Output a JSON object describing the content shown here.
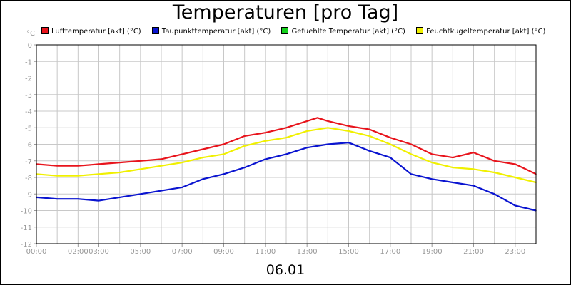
{
  "chart_data": {
    "type": "line",
    "title": "Temperaturen [pro Tag]",
    "unit": "°C",
    "xlabel": "06.01",
    "ylim": [
      -12,
      0
    ],
    "yticks": [
      0,
      -1,
      -2,
      -3,
      -4,
      -5,
      -6,
      -7,
      -8,
      -9,
      -10,
      -11,
      -12
    ],
    "x_range_hours": [
      0,
      24
    ],
    "xtick_labels": [
      {
        "hour": 0,
        "label": "00:00"
      },
      {
        "hour": 2,
        "label": "02:00"
      },
      {
        "hour": 3,
        "label": "03:00"
      },
      {
        "hour": 5,
        "label": "05:00"
      },
      {
        "hour": 7,
        "label": "07:00"
      },
      {
        "hour": 9,
        "label": "09:00"
      },
      {
        "hour": 11,
        "label": "11:00"
      },
      {
        "hour": 13,
        "label": "13:00"
      },
      {
        "hour": 15,
        "label": "15:00"
      },
      {
        "hour": 17,
        "label": "17:00"
      },
      {
        "hour": 19,
        "label": "19:00"
      },
      {
        "hour": 21,
        "label": "21:00"
      },
      {
        "hour": 23,
        "label": "23:00"
      }
    ],
    "grid": true,
    "legend_position": "top",
    "series": [
      {
        "name": "Lufttemperatur [akt] (°C)",
        "color": "#e8141c",
        "points": [
          [
            0,
            -7.2
          ],
          [
            1,
            -7.3
          ],
          [
            2,
            -7.3
          ],
          [
            3,
            -7.2
          ],
          [
            4,
            -7.1
          ],
          [
            5,
            -7.0
          ],
          [
            6,
            -6.9
          ],
          [
            7,
            -6.6
          ],
          [
            8,
            -6.3
          ],
          [
            9,
            -6.0
          ],
          [
            10,
            -5.5
          ],
          [
            11,
            -5.3
          ],
          [
            12,
            -5.0
          ],
          [
            13,
            -4.6
          ],
          [
            13.5,
            -4.4
          ],
          [
            14,
            -4.6
          ],
          [
            15,
            -4.9
          ],
          [
            16,
            -5.1
          ],
          [
            17,
            -5.6
          ],
          [
            18,
            -6.0
          ],
          [
            19,
            -6.6
          ],
          [
            20,
            -6.8
          ],
          [
            21,
            -6.5
          ],
          [
            22,
            -7.0
          ],
          [
            23,
            -7.2
          ],
          [
            24,
            -7.8
          ]
        ]
      },
      {
        "name": "Taupunkttemperatur [akt] (°C)",
        "color": "#0a14d0",
        "points": [
          [
            0,
            -9.2
          ],
          [
            1,
            -9.3
          ],
          [
            2,
            -9.3
          ],
          [
            3,
            -9.4
          ],
          [
            4,
            -9.2
          ],
          [
            5,
            -9.0
          ],
          [
            6,
            -8.8
          ],
          [
            7,
            -8.6
          ],
          [
            8,
            -8.1
          ],
          [
            9,
            -7.8
          ],
          [
            10,
            -7.4
          ],
          [
            11,
            -6.9
          ],
          [
            12,
            -6.6
          ],
          [
            13,
            -6.2
          ],
          [
            14,
            -6.0
          ],
          [
            15,
            -5.9
          ],
          [
            16,
            -6.4
          ],
          [
            17,
            -6.8
          ],
          [
            18,
            -7.8
          ],
          [
            19,
            -8.1
          ],
          [
            20,
            -8.3
          ],
          [
            21,
            -8.5
          ],
          [
            22,
            -9.0
          ],
          [
            23,
            -9.7
          ],
          [
            24,
            -10.0
          ]
        ]
      },
      {
        "name": "Gefuehlte Temperatur [akt] (°C)",
        "color": "#14d01c",
        "points": []
      },
      {
        "name": "Feuchtkugeltemperatur [akt] (°C)",
        "color": "#f0f000",
        "points": [
          [
            0,
            -7.8
          ],
          [
            1,
            -7.9
          ],
          [
            2,
            -7.9
          ],
          [
            3,
            -7.8
          ],
          [
            4,
            -7.7
          ],
          [
            5,
            -7.5
          ],
          [
            6,
            -7.3
          ],
          [
            7,
            -7.1
          ],
          [
            8,
            -6.8
          ],
          [
            9,
            -6.6
          ],
          [
            10,
            -6.1
          ],
          [
            11,
            -5.8
          ],
          [
            12,
            -5.6
          ],
          [
            13,
            -5.2
          ],
          [
            14,
            -5.0
          ],
          [
            15,
            -5.2
          ],
          [
            16,
            -5.5
          ],
          [
            17,
            -6.0
          ],
          [
            18,
            -6.6
          ],
          [
            19,
            -7.1
          ],
          [
            20,
            -7.4
          ],
          [
            21,
            -7.5
          ],
          [
            22,
            -7.7
          ],
          [
            23,
            -8.0
          ],
          [
            24,
            -8.3
          ]
        ]
      }
    ]
  }
}
